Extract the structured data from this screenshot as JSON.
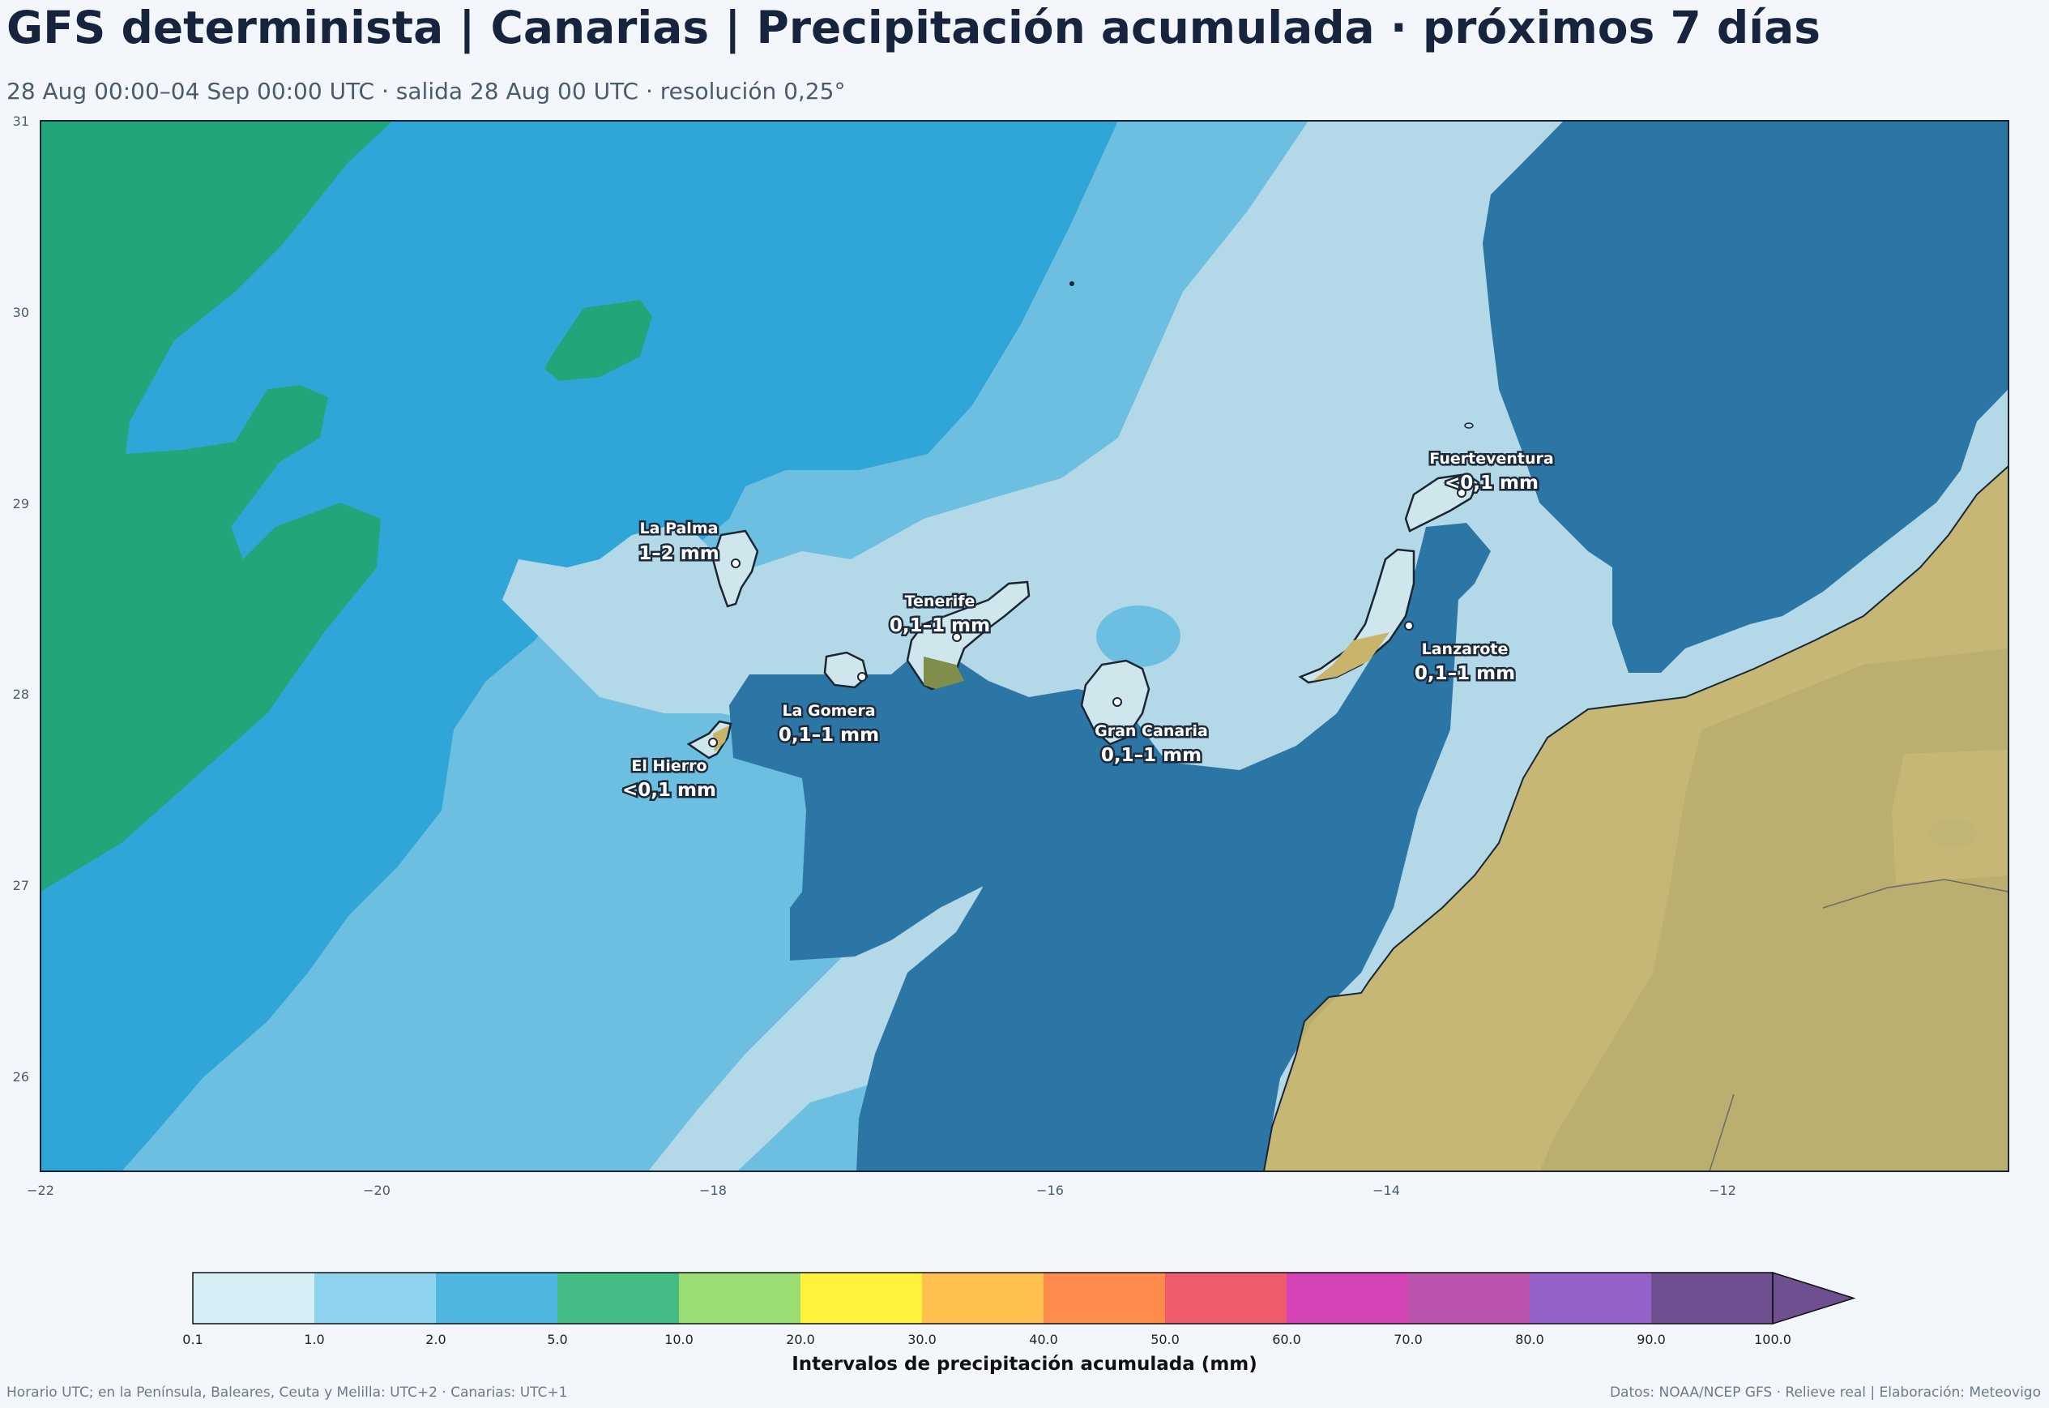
{
  "header": {
    "title": "GFS determinista | Canarias | Precipitación acumulada · próximos 7 días",
    "subtitle": "28 Aug 00:00–04 Sep 00:00 UTC · salida 28 Aug 00 UTC · resolución 0,25°"
  },
  "map": {
    "lon_range": [
      -22,
      -10.3
    ],
    "lat_range": [
      25.5,
      31
    ],
    "x_ticks": [
      "−22",
      "−20",
      "−18",
      "−16",
      "−14",
      "−12"
    ],
    "y_ticks": [
      "31",
      "30",
      "29",
      "28",
      "27",
      "26"
    ],
    "islands": [
      {
        "name": "La Palma",
        "value": "1–2 mm"
      },
      {
        "name": "Tenerife",
        "value": "0,1–1 mm"
      },
      {
        "name": "La Gomera",
        "value": "0,1–1 mm"
      },
      {
        "name": "El Hierro",
        "value": "<0,1 mm"
      },
      {
        "name": "Gran Canaria",
        "value": "0,1–1 mm"
      },
      {
        "name": "Lanzarote",
        "value": "0,1–1 mm"
      },
      {
        "name": "Fuerteventura",
        "value": "<0,1 mm"
      }
    ],
    "colors": {
      "band_0_1": "#2c76a6",
      "band_1_2": "#b3d8e8",
      "band_2_5": "#6cbfe0",
      "band_5_10": "#30a5d8",
      "band_10_20": "#22a679",
      "land": "#c8b46a"
    }
  },
  "colorbar": {
    "title": "Intervalos de precipitación acumulada (mm)",
    "ticks": [
      "0.1",
      "1.0",
      "2.0",
      "5.0",
      "10.0",
      "20.0",
      "30.0",
      "40.0",
      "50.0",
      "60.0",
      "70.0",
      "80.0",
      "90.0",
      "100.0"
    ],
    "colors": [
      "#d6eef5",
      "#8dd3ee",
      "#4fb6e1",
      "#45bc86",
      "#9ade73",
      "#fff23c",
      "#ffc04e",
      "#ff8b4c",
      "#f05b6c",
      "#d544b6",
      "#bb54ad",
      "#9462c9",
      "#6e4f8f"
    ]
  },
  "footer": {
    "left": "Horario UTC; en la Península, Baleares, Ceuta y Melilla: UTC+2 · Canarias: UTC+1",
    "right": "Datos: NOAA/NCEP GFS · Relieve real | Elaboración: Meteovigo"
  }
}
